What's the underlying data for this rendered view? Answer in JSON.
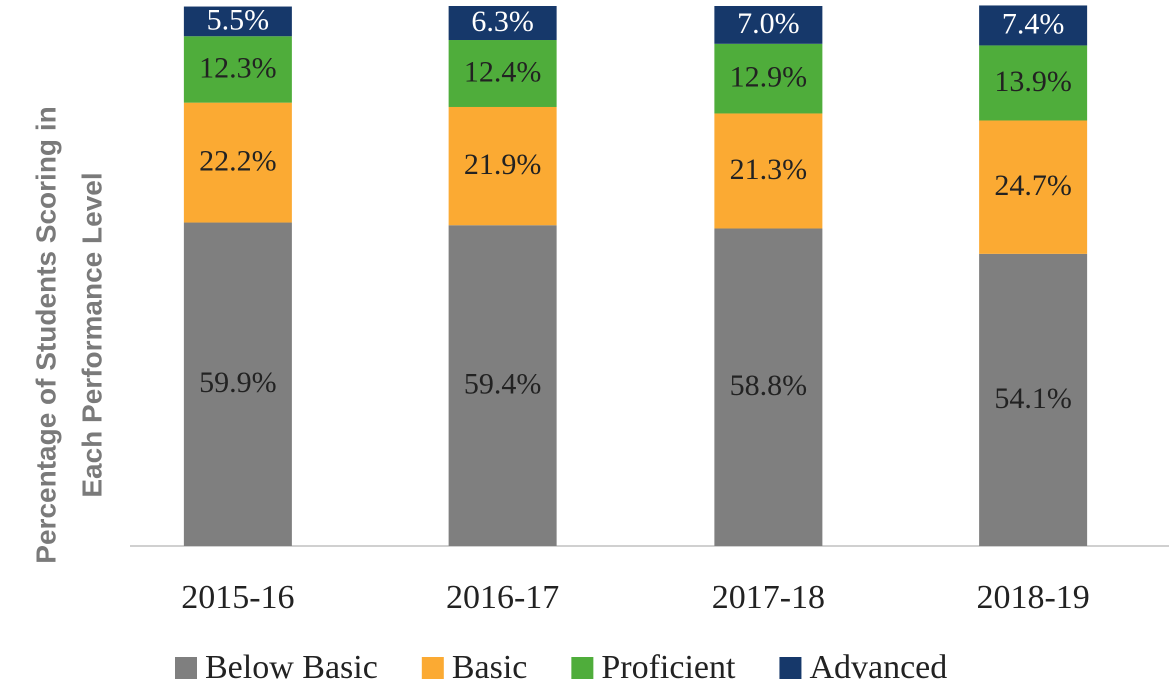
{
  "chart_data": {
    "type": "stacked_bar",
    "y_label": [
      "Percentage of Students Scoring in",
      "Each Performance Level"
    ],
    "categories": [
      "2015-16",
      "2016-17",
      "2017-18",
      "2018-19"
    ],
    "series": [
      {
        "name": "Below Basic",
        "color": "#7f7f7f",
        "values": [
          59.9,
          59.4,
          58.8,
          54.1
        ],
        "value_labels": [
          "59.9%",
          "59.4%",
          "58.8%",
          "54.1%"
        ]
      },
      {
        "name": "Basic",
        "color": "#fbaa33",
        "values": [
          22.2,
          21.9,
          21.3,
          24.7
        ],
        "value_labels": [
          "22.2%",
          "21.9%",
          "21.3%",
          "24.7%"
        ]
      },
      {
        "name": "Proficient",
        "color": "#4fad3b",
        "values": [
          12.3,
          12.4,
          12.9,
          13.9
        ],
        "value_labels": [
          "12.3%",
          "12.4%",
          "12.9%",
          "13.9%"
        ]
      },
      {
        "name": "Advanced",
        "color": "#16386a",
        "values": [
          5.5,
          6.3,
          7.0,
          7.4
        ],
        "value_labels": [
          "5.5%",
          "6.3%",
          "7.0%",
          "7.4%"
        ]
      }
    ],
    "ylim": [
      0,
      100
    ],
    "legend": "bottom"
  }
}
